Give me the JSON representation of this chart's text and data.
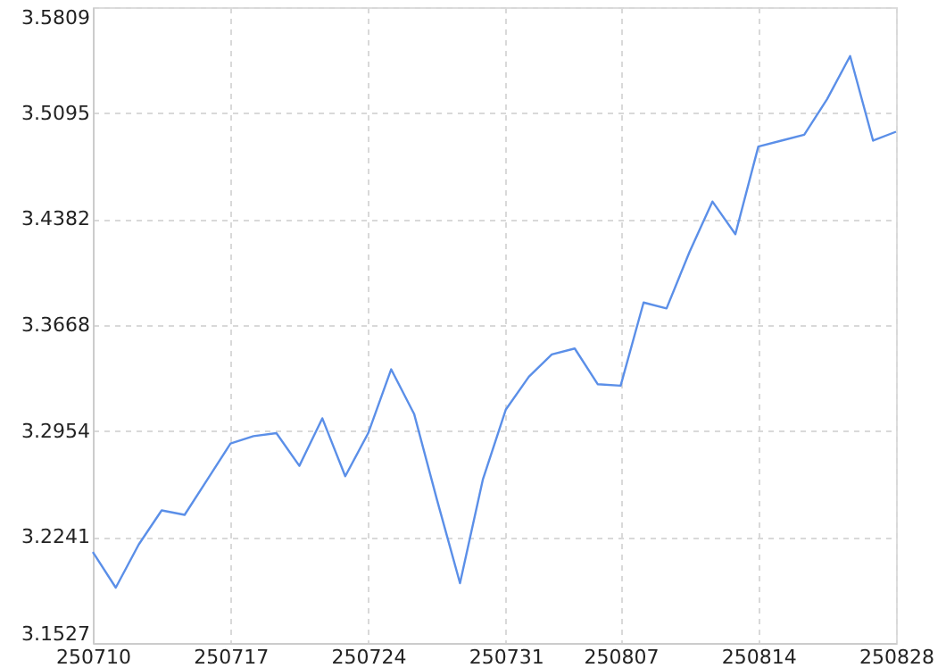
{
  "chart_data": {
    "type": "line",
    "categories": [
      "250710",
      null,
      null,
      null,
      null,
      null,
      "250717",
      null,
      null,
      null,
      null,
      null,
      "250724",
      null,
      null,
      null,
      null,
      null,
      "250731",
      null,
      null,
      null,
      null,
      "250807",
      null,
      null,
      null,
      null,
      null,
      "250814",
      null,
      null,
      null,
      null,
      null,
      "250828"
    ],
    "series": [
      {
        "color": "#5b8fe8",
        "values": [
          3.214,
          3.19,
          3.219,
          3.242,
          3.239,
          3.263,
          3.287,
          3.292,
          3.294,
          3.272,
          3.304,
          3.265,
          3.294,
          3.337,
          3.307,
          3.249,
          3.193,
          3.263,
          3.31,
          3.332,
          3.347,
          3.351,
          3.327,
          3.326,
          3.382,
          3.378,
          3.416,
          3.45,
          3.428,
          3.487,
          3.491,
          3.495,
          3.519,
          3.548,
          3.491,
          3.497
        ]
      }
    ],
    "ylim": [
      3.1527,
      3.5809
    ],
    "yticks": [
      3.1527,
      3.2241,
      3.2954,
      3.3668,
      3.4382,
      3.5095,
      3.5809
    ],
    "grid": true,
    "line_style": "solid",
    "marker": "none"
  }
}
